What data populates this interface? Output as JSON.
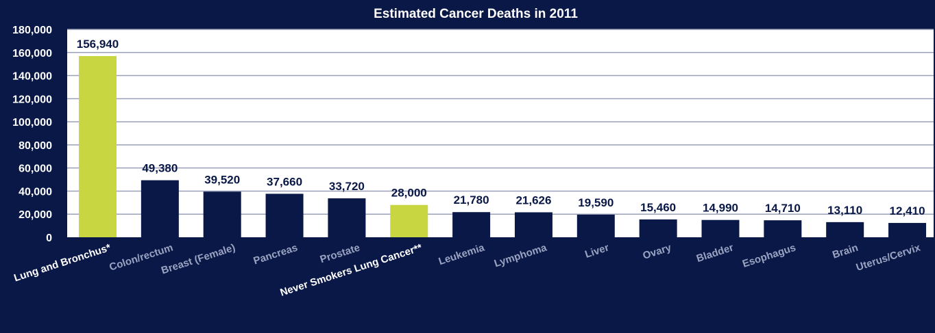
{
  "chart_data": {
    "type": "bar",
    "title": "Estimated Cancer Deaths in 2011",
    "xlabel": "",
    "ylabel": "",
    "ylim": [
      0,
      180000
    ],
    "yticks": [
      0,
      20000,
      40000,
      60000,
      80000,
      100000,
      120000,
      140000,
      160000,
      180000
    ],
    "ytick_labels": [
      "0",
      "20,000",
      "40,000",
      "60,000",
      "80,000",
      "100,000",
      "120,000",
      "140,000",
      "160,000",
      "180,000"
    ],
    "grid": true,
    "categories": [
      "Lung and Bronchus*",
      "Colon/rectum",
      "Breast (Female)",
      "Pancreas",
      "Prostate",
      "Never Smokers Lung Cancer**",
      "Leukemia",
      "Lymphoma",
      "Liver",
      "Ovary",
      "Bladder",
      "Esophagus",
      "Brain",
      "Uterus/Cervix"
    ],
    "values": [
      156940,
      49380,
      39520,
      37660,
      33720,
      28000,
      21780,
      21626,
      19590,
      15460,
      14990,
      14710,
      13110,
      12410
    ],
    "value_labels": [
      "156,940",
      "49,380",
      "39,520",
      "37,660",
      "33,720",
      "28,000",
      "21,780",
      "21,626",
      "19,590",
      "15,460",
      "14,990",
      "14,710",
      "13,110",
      "12,410"
    ],
    "highlighted": [
      "Lung and Bronchus*",
      "Never Smokers Lung Cancer**"
    ],
    "colors": {
      "background": "#0a1847",
      "plot_background": "#ffffff",
      "bar": "#0a1847",
      "highlight_bar": "#c8d642",
      "gridline": "#9aa0b8",
      "label_text": "#0a1847",
      "axis_text": "#ffffff",
      "category_text": "#9aa3c2",
      "highlight_category_text": "#ffffff"
    }
  }
}
